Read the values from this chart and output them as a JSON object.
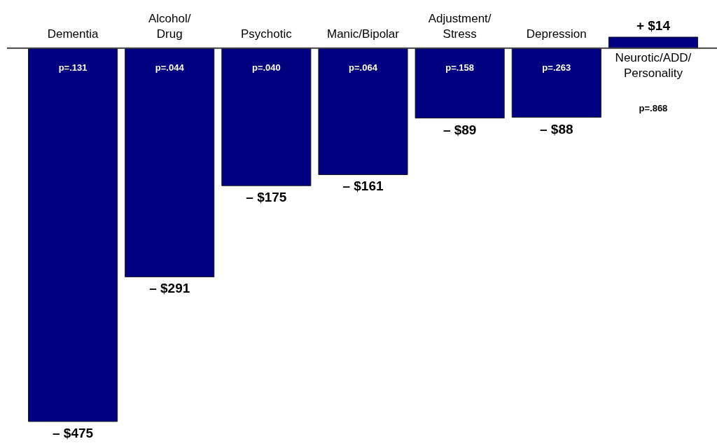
{
  "chart_data": {
    "type": "bar",
    "categories": [
      "Dementia",
      "Alcohol/\nDrug",
      "Psychotic",
      "Manic/Bipolar",
      "Adjustment/\nStress",
      "Depression",
      "Neurotic/ADD/\nPersonality"
    ],
    "values": [
      -475,
      -291,
      -175,
      -161,
      -89,
      -88,
      14
    ],
    "color": "#000080",
    "value_labels": [
      "– $475",
      "– $291",
      "– $175",
      "– $161",
      "– $89",
      "– $88",
      "+ $14"
    ],
    "annotations": [
      "p=.131",
      "p=.044",
      "p=.040",
      "p=.064",
      "p=.158",
      "p=.263",
      "p=.868"
    ]
  }
}
